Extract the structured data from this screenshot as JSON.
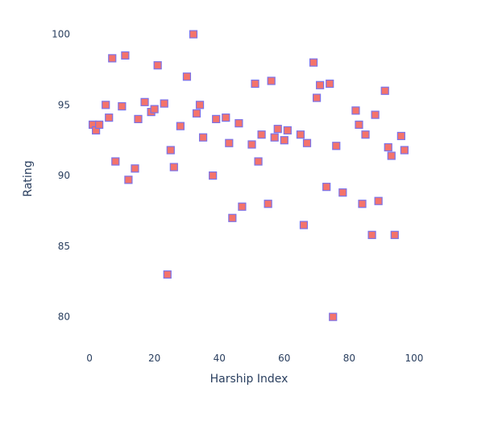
{
  "chart_data": {
    "type": "scatter",
    "title": "",
    "xlabel": "Harship Index",
    "ylabel": "Rating",
    "xlim": [
      -2,
      101
    ],
    "ylim": [
      78.5,
      101
    ],
    "xticks": [
      0,
      20,
      40,
      60,
      80,
      100
    ],
    "yticks": [
      80,
      85,
      90,
      95,
      100
    ],
    "grid": false,
    "legend": "none",
    "marker": {
      "symbol": "square",
      "fill": "#f4736b",
      "stroke": "#7b72e9"
    },
    "series": [
      {
        "points": [
          [
            1,
            93.6
          ],
          [
            2,
            93.2
          ],
          [
            3,
            93.6
          ],
          [
            5,
            95.0
          ],
          [
            6,
            94.1
          ],
          [
            7,
            98.3
          ],
          [
            8,
            91.0
          ],
          [
            10,
            94.9
          ],
          [
            11,
            98.5
          ],
          [
            12,
            89.7
          ],
          [
            14,
            90.5
          ],
          [
            15,
            94.0
          ],
          [
            17,
            95.2
          ],
          [
            19,
            94.5
          ],
          [
            20,
            94.7
          ],
          [
            21,
            97.8
          ],
          [
            23,
            95.1
          ],
          [
            24,
            83.0
          ],
          [
            25,
            91.8
          ],
          [
            26,
            90.6
          ],
          [
            28,
            93.5
          ],
          [
            30,
            97.0
          ],
          [
            32,
            100.0
          ],
          [
            33,
            94.4
          ],
          [
            34,
            95.0
          ],
          [
            35,
            92.7
          ],
          [
            38,
            90.0
          ],
          [
            39,
            94.0
          ],
          [
            42,
            94.1
          ],
          [
            43,
            92.3
          ],
          [
            44,
            87.0
          ],
          [
            46,
            93.7
          ],
          [
            47,
            87.8
          ],
          [
            50,
            92.2
          ],
          [
            51,
            96.5
          ],
          [
            52,
            91.0
          ],
          [
            53,
            92.9
          ],
          [
            55,
            88.0
          ],
          [
            56,
            96.7
          ],
          [
            57,
            92.7
          ],
          [
            58,
            93.3
          ],
          [
            60,
            92.5
          ],
          [
            61,
            93.2
          ],
          [
            65,
            92.9
          ],
          [
            66,
            86.5
          ],
          [
            67,
            92.3
          ],
          [
            69,
            98.0
          ],
          [
            70,
            95.5
          ],
          [
            71,
            96.4
          ],
          [
            73,
            89.2
          ],
          [
            74,
            96.5
          ],
          [
            75,
            80.0
          ],
          [
            76,
            92.1
          ],
          [
            78,
            88.8
          ],
          [
            82,
            94.6
          ],
          [
            83,
            93.6
          ],
          [
            84,
            88.0
          ],
          [
            85,
            92.9
          ],
          [
            87,
            85.8
          ],
          [
            88,
            94.3
          ],
          [
            89,
            88.2
          ],
          [
            91,
            96.0
          ],
          [
            92,
            92.0
          ],
          [
            93,
            91.4
          ],
          [
            94,
            85.8
          ],
          [
            96,
            92.8
          ],
          [
            97,
            91.8
          ]
        ]
      }
    ]
  }
}
